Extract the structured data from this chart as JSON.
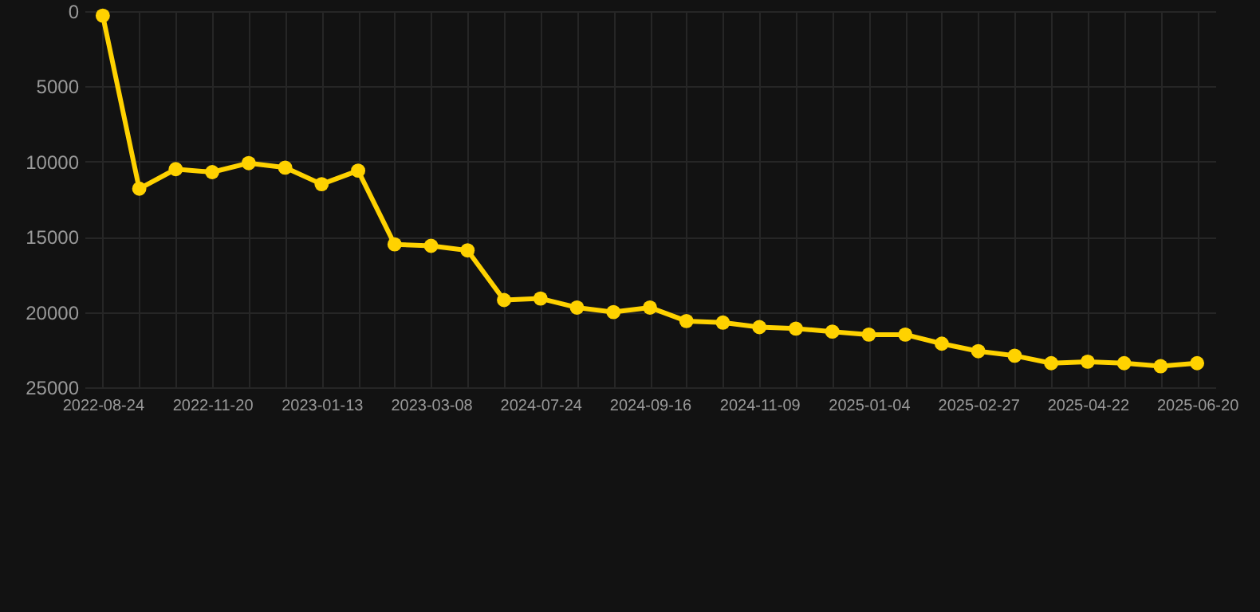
{
  "chart_data": {
    "type": "line",
    "categories": [
      "2022-08-24",
      null,
      null,
      "2022-11-20",
      null,
      null,
      "2023-01-13",
      null,
      null,
      "2023-03-08",
      null,
      null,
      "2024-07-24",
      null,
      null,
      "2024-09-16",
      null,
      null,
      "2024-11-09",
      null,
      null,
      "2025-01-04",
      null,
      null,
      "2025-02-27",
      null,
      null,
      "2025-04-22",
      null,
      null,
      "2025-06-20"
    ],
    "series": [
      {
        "color": "#ffd200",
        "values": [
          300,
          11800,
          10500,
          10700,
          10100,
          10400,
          11500,
          10600,
          15500,
          15600,
          15900,
          19200,
          19100,
          19700,
          20000,
          19700,
          20600,
          20700,
          21000,
          21100,
          21300,
          21500,
          21500,
          22100,
          22600,
          22900,
          23400,
          23300,
          23400,
          23600,
          23400
        ]
      }
    ],
    "ylim": [
      25000,
      0
    ],
    "yticks": [
      0,
      5000,
      10000,
      15000,
      20000,
      25000
    ],
    "grid": true,
    "marker": "circle",
    "line_style": "solid"
  }
}
